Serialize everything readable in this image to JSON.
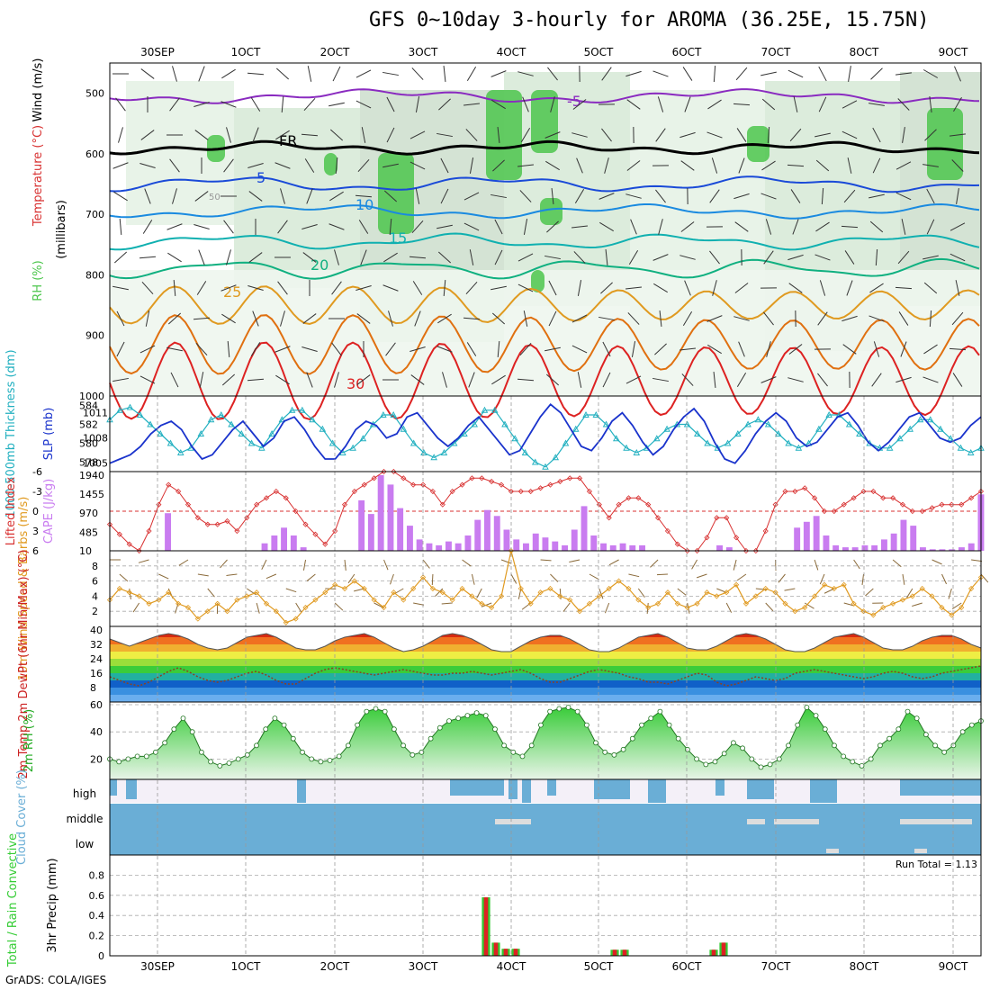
{
  "title": "GFS 0~10day 3-hourly for AROMA (36.25E, 15.75N)",
  "footer": "GrADS: COLA/IGES",
  "date_labels": [
    "30SEP",
    "1OCT",
    "2OCT",
    "3OCT",
    "4OCT",
    "5OCT",
    "6OCT",
    "7OCT",
    "8OCT",
    "9OCT"
  ],
  "colors": {
    "rh_green": "#4cc64c",
    "thick_cyan": "#22b0c0",
    "slp_blue": "#1a33cc",
    "cape_purple": "#c97cf0",
    "lifted_red": "#d83030",
    "wind_orange": "#e09a20",
    "precip_green": "#33cc33",
    "precip_red": "#dd2222",
    "cloud_blue": "#6aaed6",
    "temp_red": "#cc2222",
    "dew_green": "#22aa22"
  },
  "chart_data": [
    {
      "type": "contour",
      "name": "upper-air",
      "ylabel_parts": [
        "RH (%)",
        "Temperature (°C)",
        "Wind (m/s)"
      ],
      "ylabel_unit": "(millibars)",
      "yticks": [
        "500",
        "600",
        "700",
        "800",
        "900",
        "1000"
      ],
      "ylim": [
        1000,
        450
      ],
      "isotherm_labels": [
        "-5",
        "FR",
        "5",
        "10",
        "15",
        "20",
        "25",
        "30"
      ],
      "rh_label": "50"
    },
    {
      "type": "line",
      "name": "thickness-slp",
      "ylabel_left": "1000-500mb Thickness (dm)",
      "ylabel_right": "SLP (mb)",
      "yticks_left": [
        "584",
        "582",
        "580",
        "578"
      ],
      "yticks_right": [
        "1011",
        "1008",
        "1005"
      ],
      "series": [
        {
          "name": "Thickness",
          "values": [
            582.5,
            583.5,
            583.8,
            583,
            582,
            581,
            580,
            579,
            579.5,
            581,
            582.5,
            583,
            582,
            581,
            580,
            579.5,
            581,
            582.5,
            583.5,
            583.5,
            582.5,
            581.5,
            580,
            579,
            579.5,
            580.5,
            582,
            583,
            583,
            581.5,
            580,
            579,
            578.5,
            579,
            580,
            581,
            582,
            583.5,
            583.5,
            582,
            580.5,
            579,
            578,
            577.5,
            578.5,
            580,
            581.5,
            583,
            583,
            582,
            580.5,
            579.5,
            579,
            579.5,
            580.5,
            581.5,
            582,
            582,
            581,
            580,
            579.5,
            580,
            581,
            582,
            582.5,
            582,
            581,
            580,
            579.5,
            580,
            581.5,
            583,
            583,
            582,
            581,
            580,
            579.5,
            579.5,
            580.5,
            581.5,
            582.5,
            582.5,
            581.5,
            580.5,
            579.5,
            579,
            579.5
          ]
        },
        {
          "name": "SLP",
          "values": [
            1005,
            1005.5,
            1006,
            1007,
            1008.5,
            1009.5,
            1010,
            1009,
            1007,
            1005.5,
            1006,
            1007.5,
            1009,
            1010,
            1008.5,
            1007,
            1008,
            1010,
            1010.5,
            1009,
            1007,
            1005.5,
            1005.5,
            1007,
            1009,
            1010,
            1009.5,
            1008,
            1008.5,
            1010.5,
            1011,
            1009.5,
            1008,
            1007,
            1008,
            1009.5,
            1010.5,
            1009,
            1007.5,
            1006,
            1006.5,
            1008.5,
            1010.5,
            1012,
            1011,
            1009,
            1007,
            1006.5,
            1008,
            1010,
            1011,
            1009.5,
            1007.5,
            1006,
            1007,
            1009,
            1010.5,
            1011.5,
            1010,
            1007.5,
            1005.5,
            1005,
            1006.5,
            1008.5,
            1010,
            1011,
            1010,
            1008,
            1007,
            1007.5,
            1009,
            1010.5,
            1011,
            1009.5,
            1007.5,
            1006.5,
            1007.5,
            1009,
            1010.5,
            1011,
            1009.5,
            1008,
            1007.5,
            1008,
            1009.5,
            1010.5
          ]
        }
      ]
    },
    {
      "type": "bar",
      "name": "cape-lifted",
      "ylabel_left": "Lifted Index",
      "ylabel_right": "CAPE (J/kg)",
      "yticks_left": [
        "-6",
        "-3",
        "0",
        "3",
        "6"
      ],
      "yticks_right": [
        "1940",
        "1455",
        "970",
        "485",
        "10"
      ],
      "series": [
        {
          "name": "CAPE",
          "values": [
            0,
            0,
            0,
            0,
            0,
            0,
            970,
            0,
            0,
            0,
            0,
            0,
            0,
            0,
            0,
            0,
            200,
            400,
            600,
            400,
            100,
            0,
            0,
            0,
            0,
            0,
            1300,
            950,
            1940,
            1700,
            1100,
            650,
            300,
            200,
            150,
            250,
            200,
            400,
            800,
            1050,
            900,
            550,
            300,
            200,
            450,
            350,
            250,
            150,
            550,
            1150,
            400,
            200,
            150,
            200,
            150,
            150,
            0,
            0,
            0,
            0,
            0,
            0,
            0,
            150,
            100,
            0,
            0,
            0,
            0,
            0,
            0,
            600,
            750,
            900,
            400,
            150,
            100,
            100,
            150,
            150,
            300,
            450,
            800,
            650,
            100,
            50,
            50,
            50,
            100,
            200,
            1450
          ]
        },
        {
          "name": "Lifted Index",
          "values": [
            2,
            3.5,
            5,
            6,
            3,
            -1,
            -4,
            -3,
            -1,
            1,
            2,
            2,
            1.5,
            3,
            1,
            -1,
            -2,
            -3,
            -2,
            0,
            2,
            3.5,
            5,
            3,
            -1,
            -3,
            -4,
            -5,
            -6,
            -6,
            -5,
            -4,
            -4,
            -3,
            -1,
            -3,
            -4,
            -5,
            -5,
            -4.5,
            -4,
            -3,
            -3,
            -3,
            -3.5,
            -4,
            -4.5,
            -5,
            -5,
            -3,
            -1,
            1,
            -1,
            -2,
            -2,
            -1,
            1,
            3,
            5,
            6,
            6,
            4,
            1,
            1,
            4,
            6,
            6,
            3,
            -1,
            -3,
            -3,
            -3.5,
            -2,
            0,
            0,
            -1,
            -2,
            -3,
            -3,
            -2,
            -2,
            -1,
            0,
            0,
            -0.5,
            -1,
            -1,
            -1,
            -2,
            -3
          ]
        }
      ]
    },
    {
      "type": "line",
      "name": "wind10m",
      "ylabel": "10m Wind Speed & Barbs (m/s)",
      "yticks": [
        "2",
        "4",
        "6",
        "8"
      ],
      "series": [
        {
          "name": "Speed",
          "values": [
            3.5,
            5,
            4.5,
            4,
            3,
            3.5,
            4.5,
            3,
            2.5,
            1,
            2,
            3,
            2,
            3.5,
            4,
            4.5,
            3,
            2,
            0.5,
            1,
            2.5,
            3.5,
            4.5,
            5.5,
            5,
            6,
            5,
            3.5,
            2.5,
            4.5,
            3.5,
            5,
            6.5,
            5,
            4.5,
            3.5,
            5,
            4,
            3,
            2.5,
            4,
            10,
            5,
            3,
            4.5,
            5,
            4,
            3.5,
            2,
            3,
            4,
            5,
            6,
            5,
            3.5,
            2.5,
            3,
            4.5,
            3,
            2.5,
            3,
            4.5,
            4,
            4.5,
            5.5,
            3,
            4,
            5,
            4.5,
            3,
            2,
            2.5,
            4,
            5.5,
            5,
            5.5,
            3,
            2,
            1.5,
            2.5,
            3,
            3.5,
            4,
            5,
            4,
            2.5,
            1.5,
            2.5,
            5,
            6.5
          ]
        }
      ]
    },
    {
      "type": "area",
      "name": "temp2m",
      "ylabel": "2m Temp 2m DewPt (6hr Min/Max) (°C)",
      "yticks": [
        "8",
        "16",
        "24",
        "32",
        "40"
      ],
      "series": [
        {
          "name": "Temp",
          "values": [
            35,
            33,
            31,
            33,
            35,
            37,
            38,
            37,
            35,
            32,
            30,
            29,
            30,
            33,
            36,
            37,
            38,
            36,
            33,
            30,
            29,
            29,
            31,
            34,
            36,
            37,
            38,
            36,
            33,
            30,
            28,
            29,
            31,
            34,
            37,
            38,
            37,
            35,
            32,
            29,
            28,
            28,
            31,
            34,
            36,
            37,
            37,
            35,
            32,
            29,
            28,
            28,
            30,
            33,
            36,
            37,
            38,
            36,
            33,
            30,
            29,
            29,
            31,
            34,
            37,
            38,
            37,
            35,
            32,
            29,
            28,
            28,
            30,
            33,
            36,
            37,
            38,
            36,
            33,
            30,
            29,
            29,
            31,
            34,
            36,
            37,
            37,
            35,
            32,
            30
          ]
        },
        {
          "name": "DewPt",
          "values": [
            14,
            12,
            10,
            9,
            11,
            14,
            17,
            19,
            17,
            14,
            12,
            11,
            12,
            14,
            16,
            17,
            15,
            12,
            10,
            10,
            13,
            16,
            18,
            19,
            18,
            17,
            16,
            15,
            16,
            17,
            18,
            17,
            16,
            15,
            15,
            16,
            16,
            17,
            16,
            15,
            16,
            17,
            18,
            16,
            13,
            11,
            11,
            13,
            15,
            17,
            18,
            17,
            16,
            14,
            13,
            11,
            11,
            10,
            12,
            14,
            16,
            15,
            11,
            9,
            10,
            12,
            14,
            13,
            12,
            13,
            16,
            17,
            18,
            17,
            16,
            15,
            14,
            13,
            14,
            16,
            17,
            16,
            14,
            13,
            14,
            16,
            17,
            18,
            19,
            20
          ]
        }
      ]
    },
    {
      "type": "area",
      "name": "rh2m",
      "ylabel": "2m RH (%)",
      "yticks": [
        "20",
        "40",
        "60"
      ],
      "series": [
        {
          "name": "RH",
          "values": [
            20,
            18,
            20,
            22,
            22,
            25,
            32,
            42,
            50,
            40,
            25,
            18,
            15,
            17,
            20,
            23,
            30,
            42,
            50,
            45,
            35,
            25,
            20,
            18,
            19,
            22,
            30,
            45,
            55,
            57,
            55,
            42,
            30,
            23,
            25,
            35,
            43,
            48,
            50,
            52,
            54,
            52,
            42,
            30,
            25,
            22,
            30,
            45,
            55,
            57,
            58,
            55,
            45,
            32,
            25,
            23,
            27,
            35,
            45,
            50,
            55,
            45,
            35,
            27,
            20,
            16,
            18,
            24,
            32,
            28,
            20,
            14,
            16,
            20,
            30,
            45,
            58,
            52,
            42,
            30,
            22,
            18,
            15,
            20,
            30,
            35,
            42,
            55,
            50,
            38,
            30,
            25,
            30,
            40,
            45,
            48
          ]
        }
      ]
    },
    {
      "type": "heatmap",
      "name": "cloud",
      "ylabel": "Cloud Cover (%)",
      "rows": [
        "high",
        "middle",
        "low"
      ]
    },
    {
      "type": "bar",
      "name": "precip",
      "ylabel_left": "Total / Rain Convective",
      "ylabel": "3hr Precip (mm)",
      "yticks": [
        "0",
        "0.2",
        "0.4",
        "0.6",
        "0.8"
      ],
      "ylim": [
        0,
        1.0
      ],
      "run_total": "Run Total = 1.13",
      "series": [
        {
          "name": "Total",
          "values": [
            0,
            0,
            0,
            0,
            0,
            0,
            0,
            0,
            0,
            0,
            0,
            0,
            0,
            0,
            0,
            0,
            0,
            0,
            0,
            0,
            0,
            0,
            0,
            0,
            0,
            0,
            0,
            0,
            0,
            0,
            0,
            0,
            0,
            0,
            0,
            0,
            0,
            0,
            0.58,
            0.13,
            0.07,
            0.07,
            0,
            0,
            0,
            0,
            0,
            0,
            0,
            0,
            0,
            0.06,
            0.06,
            0,
            0,
            0,
            0,
            0,
            0,
            0,
            0,
            0.06,
            0.13,
            0,
            0,
            0,
            0,
            0,
            0,
            0,
            0,
            0,
            0,
            0,
            0,
            0,
            0,
            0,
            0,
            0,
            0,
            0,
            0,
            0,
            0,
            0,
            0,
            0,
            0
          ]
        }
      ]
    }
  ]
}
